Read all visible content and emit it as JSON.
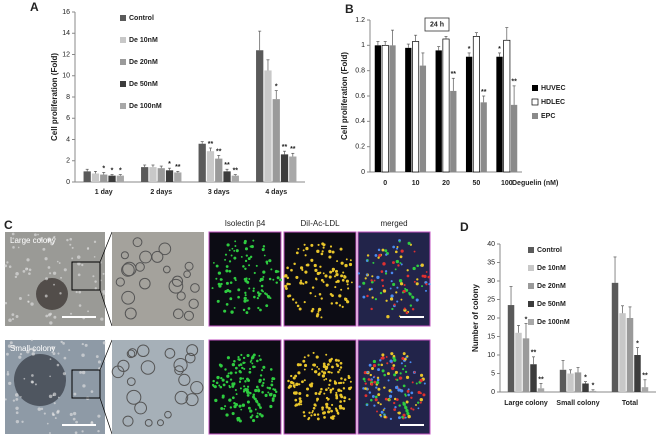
{
  "chart_data": [
    {
      "type": "bar",
      "label": "A",
      "ylabel": "Cell proliferation (Fold)",
      "categories": [
        "1 day",
        "2 days",
        "3 days",
        "4 days"
      ],
      "ylim": [
        0,
        16
      ],
      "yticks": [
        0,
        2,
        4,
        6,
        8,
        10,
        12,
        14,
        16
      ],
      "legend": "upper left",
      "series": [
        {
          "name": "Control",
          "color": "#5a5a5a",
          "values": [
            1.0,
            1.4,
            3.6,
            12.4
          ],
          "errors": [
            0.2,
            0.2,
            0.2,
            1.8
          ],
          "annotations": [
            null,
            null,
            null,
            null
          ]
        },
        {
          "name": "De 10nM",
          "color": "#c8c8c8",
          "values": [
            0.8,
            1.4,
            2.9,
            10.5
          ],
          "errors": [
            0.2,
            0.2,
            0.3,
            1.0
          ],
          "annotations": [
            null,
            null,
            "**",
            null
          ]
        },
        {
          "name": "De 20nM",
          "color": "#9a9a9a",
          "values": [
            0.7,
            1.3,
            2.2,
            7.8
          ],
          "errors": [
            0.2,
            0.2,
            0.3,
            0.8
          ],
          "annotations": [
            "*",
            null,
            "**",
            "*"
          ]
        },
        {
          "name": "De 50nM",
          "color": "#3c3c3c",
          "values": [
            0.6,
            1.1,
            1.0,
            2.6
          ],
          "errors": [
            0.1,
            0.2,
            0.2,
            0.3
          ],
          "annotations": [
            "*",
            "*",
            "**",
            "**"
          ]
        },
        {
          "name": "De 100nM",
          "color": "#a8a8a8",
          "values": [
            0.6,
            0.9,
            0.6,
            2.4
          ],
          "errors": [
            0.1,
            0.1,
            0.1,
            0.3
          ],
          "annotations": [
            "*",
            "**",
            "**",
            "**"
          ]
        }
      ]
    },
    {
      "type": "bar",
      "label": "B",
      "ylabel": "Cell proliferation (Fold)",
      "xlabel": "Deguelin (nM)",
      "annotation": "24 h",
      "categories": [
        "0",
        "10",
        "20",
        "50",
        "100"
      ],
      "ylim": [
        0,
        1.2
      ],
      "yticks": [
        0,
        0.2,
        0.4,
        0.6,
        0.8,
        1,
        1.2
      ],
      "legend": "right",
      "series": [
        {
          "name": "HUVEC",
          "color": "#000000",
          "values": [
            1.0,
            0.98,
            0.96,
            0.91,
            0.91
          ],
          "errors": [
            0.03,
            0.03,
            0.03,
            0.03,
            0.03
          ],
          "annotations": [
            null,
            null,
            null,
            "*",
            "*"
          ]
        },
        {
          "name": "HDLEC",
          "color": "#ffffff",
          "values": [
            1.0,
            1.03,
            1.05,
            1.07,
            1.04
          ],
          "errors": [
            0.03,
            0.05,
            0.02,
            0.03,
            0.1
          ],
          "annotations": [
            null,
            null,
            null,
            null,
            null
          ]
        },
        {
          "name": "EPC",
          "color": "#8a8a8a",
          "values": [
            1.0,
            0.84,
            0.64,
            0.55,
            0.53
          ],
          "errors": [
            0.12,
            0.1,
            0.1,
            0.05,
            0.15
          ],
          "annotations": [
            null,
            null,
            "**",
            "**",
            "**"
          ]
        }
      ]
    },
    {
      "type": "bar",
      "label": "D",
      "ylabel": "Number of colony",
      "categories": [
        "Large colony",
        "Small colony",
        "Total"
      ],
      "ylim": [
        0,
        40
      ],
      "yticks": [
        0,
        5,
        10,
        15,
        20,
        25,
        30,
        35,
        40
      ],
      "legend": "upper left",
      "series": [
        {
          "name": "Control",
          "color": "#5a5a5a",
          "values": [
            23.5,
            6,
            29.5
          ],
          "errors": [
            5,
            2.5,
            7
          ],
          "annotations": [
            null,
            null,
            null
          ]
        },
        {
          "name": "De 10nM",
          "color": "#c8c8c8",
          "values": [
            16,
            5,
            21.3
          ],
          "errors": [
            2,
            1,
            2
          ],
          "annotations": [
            null,
            null,
            null
          ]
        },
        {
          "name": "De 20nM",
          "color": "#9a9a9a",
          "values": [
            14.5,
            5.3,
            20
          ],
          "errors": [
            4,
            1.3,
            3
          ],
          "annotations": [
            "*",
            null,
            null
          ]
        },
        {
          "name": "De 50nM",
          "color": "#3c3c3c",
          "values": [
            7.5,
            2.3,
            10
          ],
          "errors": [
            2,
            0.5,
            2
          ],
          "annotations": [
            "**",
            "*",
            "*"
          ]
        },
        {
          "name": "De 100nM",
          "color": "#a8a8a8",
          "values": [
            1,
            0.3,
            1.3
          ],
          "errors": [
            1.3,
            0.3,
            2
          ],
          "annotations": [
            "**",
            "*",
            "**"
          ]
        }
      ]
    }
  ],
  "images": {
    "label": "C",
    "large": "Large colony",
    "small": "Small colony",
    "columns": [
      "Isolectin β4",
      "DiI-Ac-LDL",
      "merged"
    ]
  }
}
